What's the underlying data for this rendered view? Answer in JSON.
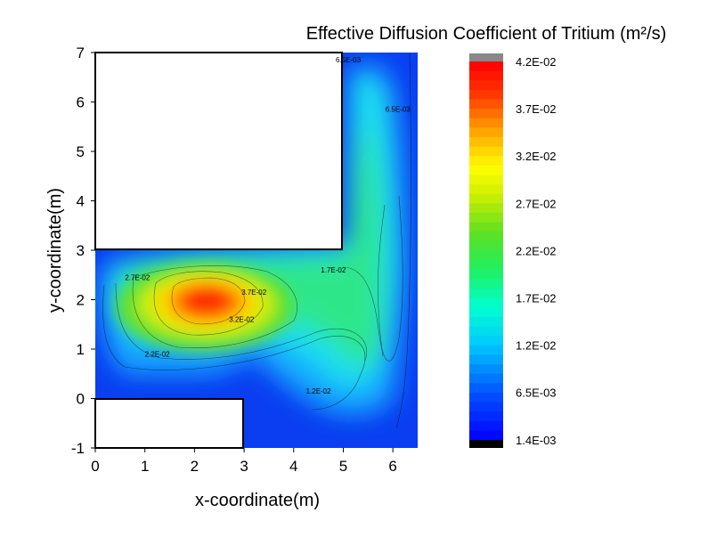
{
  "chart_data": {
    "type": "contour",
    "title": "Effective Diffusion Coefficient of Tritium (m²/s)",
    "xlabel": "x-coordinate(m)",
    "ylabel": "y-coordinate(m)",
    "xlim": [
      0,
      6.5
    ],
    "ylim": [
      -1,
      7
    ],
    "x_ticks": [
      "0",
      "1",
      "2",
      "3",
      "4",
      "5",
      "6"
    ],
    "y_ticks": [
      "-1",
      "0",
      "1",
      "2",
      "3",
      "4",
      "5",
      "6",
      "7"
    ],
    "colorbar": {
      "min": 0.0014,
      "max": 0.042,
      "tick_labels": [
        "4.2E-02",
        "3.7E-02",
        "3.2E-02",
        "2.7E-02",
        "2.2E-02",
        "1.7E-02",
        "1.2E-02",
        "6.5E-03",
        "1.4E-03"
      ]
    },
    "contour_labels": [
      {
        "text": "6.5E-03",
        "x": 5.1,
        "y": 6.8
      },
      {
        "text": "6.5E-03",
        "x": 6.1,
        "y": 5.8
      },
      {
        "text": "2.7E-02",
        "x": 0.85,
        "y": 2.4
      },
      {
        "text": "3.7E-02",
        "x": 3.2,
        "y": 2.1
      },
      {
        "text": "1.7E-02",
        "x": 4.8,
        "y": 2.55
      },
      {
        "text": "3.2E-02",
        "x": 2.95,
        "y": 1.55
      },
      {
        "text": "2.2E-02",
        "x": 1.25,
        "y": 0.85
      },
      {
        "text": "1.2E-02",
        "x": 4.5,
        "y": 0.1
      }
    ],
    "excluded_regions": [
      {
        "x": [
          0,
          5
        ],
        "y": [
          3,
          7
        ]
      },
      {
        "x": [
          0,
          3
        ],
        "y": [
          -1,
          0
        ]
      }
    ],
    "peak": {
      "x": 2.3,
      "y": 1.95,
      "value": 0.042
    }
  }
}
